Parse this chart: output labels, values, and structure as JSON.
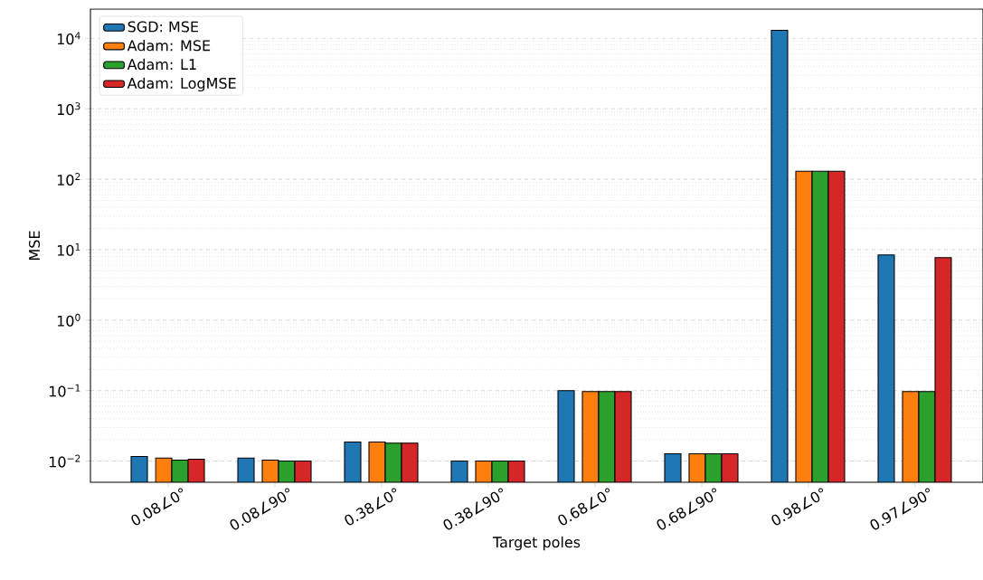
{
  "chart_data": {
    "type": "bar",
    "xlabel": "Target poles",
    "ylabel": "MSE",
    "log": "y",
    "grid": "y",
    "legend": "top left",
    "categories": [
      "0.08∠0°",
      "0.08∠90°",
      "0.38∠0°",
      "0.38∠90°",
      "0.68∠0°",
      "0.68∠90°",
      "0.98∠0°",
      "0.97∠90°"
    ],
    "ylim": [
      0.005,
      26000
    ],
    "yticks": [
      {
        "value": 0.01,
        "label": "10$^{−2}$"
      },
      {
        "value": 0.1,
        "label": "10$^{−1}$"
      },
      {
        "value": 1,
        "label": "10$^{0}$"
      },
      {
        "value": 10,
        "label": "10$^{1}$"
      },
      {
        "value": 100,
        "label": "10$^{2}$"
      },
      {
        "value": 1000,
        "label": "10$^{3}$"
      },
      {
        "value": 10000,
        "label": "10$^{4}$"
      }
    ],
    "series": [
      {
        "name": "SGD: MSE",
        "color": "#1f77b4",
        "values": [
          0.0116,
          0.011,
          0.0186,
          0.01,
          0.1,
          0.0127,
          13000,
          8.4
        ]
      },
      {
        "name": "Adam: MSE",
        "color": "#ff7f0e",
        "values": [
          0.011,
          0.0103,
          0.0186,
          0.01,
          0.097,
          0.0127,
          130,
          0.097
        ]
      },
      {
        "name": "Adam: L1",
        "color": "#2ca02c",
        "values": [
          0.0103,
          0.01,
          0.018,
          0.01,
          0.097,
          0.0127,
          130,
          0.097
        ]
      },
      {
        "name": "Adam: LogMSE",
        "color": "#d62728",
        "values": [
          0.0106,
          0.01,
          0.018,
          0.01,
          0.097,
          0.0127,
          130,
          7.7
        ]
      }
    ]
  }
}
